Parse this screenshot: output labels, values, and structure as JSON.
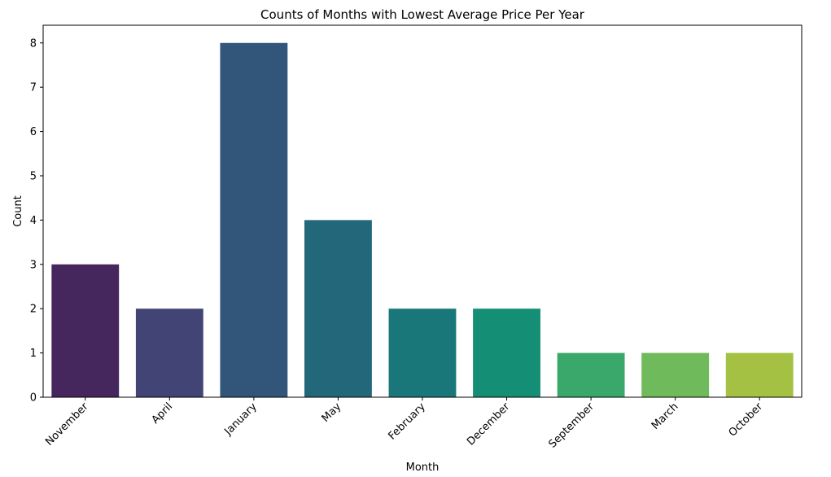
{
  "chart_data": {
    "type": "bar",
    "title": "Counts of Months with Lowest Average Price Per Year",
    "xlabel": "Month",
    "ylabel": "Count",
    "categories": [
      "November",
      "April",
      "January",
      "May",
      "February",
      "December",
      "September",
      "March",
      "October"
    ],
    "values": [
      3,
      2,
      8,
      4,
      2,
      2,
      1,
      1,
      1
    ],
    "colors": [
      "#45275e",
      "#414475",
      "#32557a",
      "#23677a",
      "#19777a",
      "#148e74",
      "#3aa76b",
      "#6fba5a",
      "#a5c144"
    ],
    "ylim": [
      0,
      8.4
    ],
    "yticks": [
      0,
      1,
      2,
      3,
      4,
      5,
      6,
      7,
      8
    ],
    "grid": false,
    "legend": "none"
  }
}
